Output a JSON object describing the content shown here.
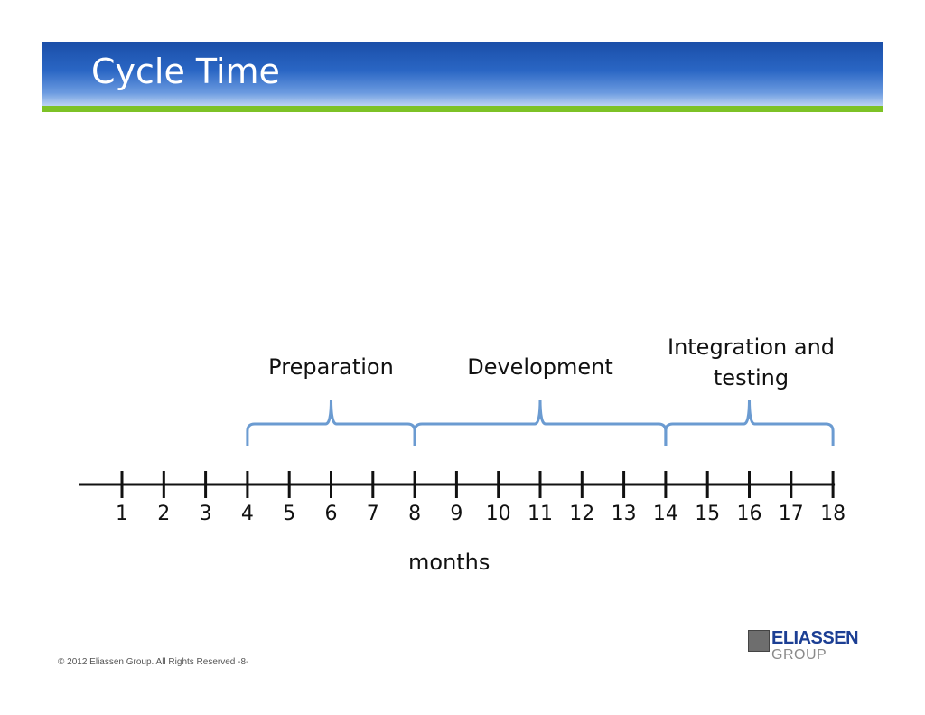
{
  "slide": {
    "title": "Cycle Time",
    "footer": "© 2012 Eliassen Group. All Rights Reserved -8-"
  },
  "logo": {
    "top_text": "ELIASSEN",
    "bottom_text": "GROUP"
  },
  "timeline": {
    "axis_label": "months",
    "ticks": [
      "1",
      "2",
      "3",
      "4",
      "5",
      "6",
      "7",
      "8",
      "9",
      "10",
      "11",
      "12",
      "13",
      "14",
      "15",
      "16",
      "17",
      "18"
    ],
    "phases": [
      {
        "label": "Preparation",
        "start": 4,
        "end": 8
      },
      {
        "label": "Development",
        "start": 8,
        "end": 14
      },
      {
        "label": "Integration and testing",
        "start": 14,
        "end": 18
      }
    ],
    "colors": {
      "axis": "#111111",
      "brace": "#6b9bd1",
      "header": "#2a66c4",
      "stripe": "#7dc226"
    }
  }
}
